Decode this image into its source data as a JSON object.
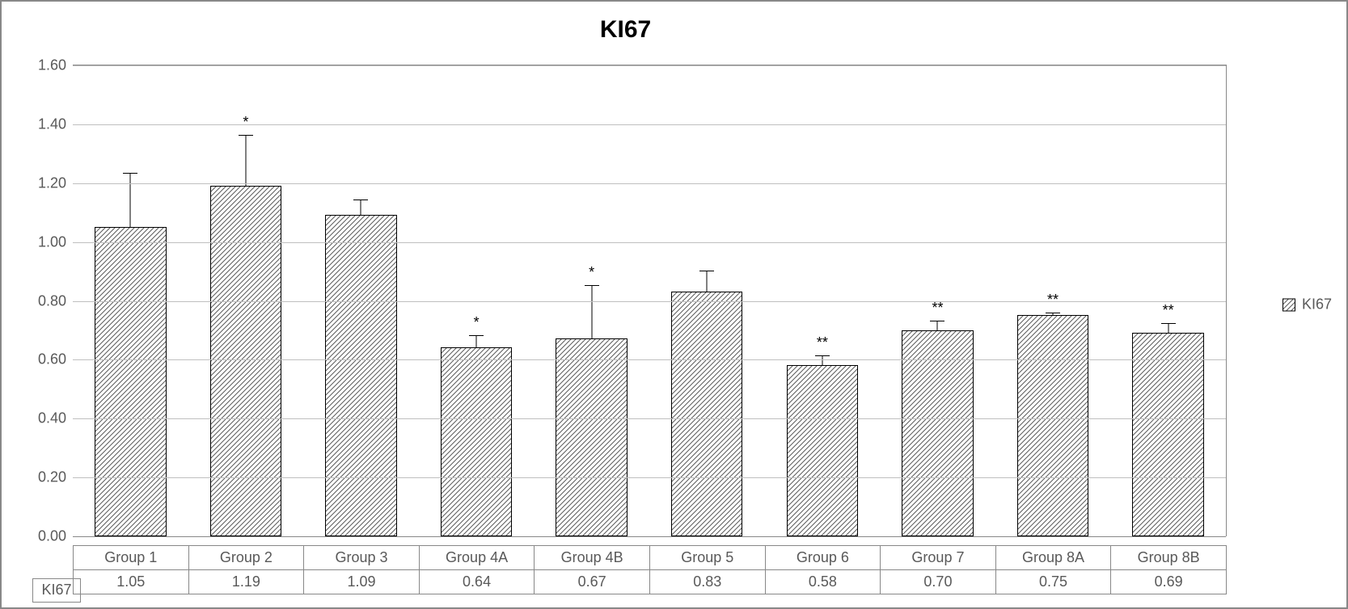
{
  "chart": {
    "type": "bar",
    "title": "KI67",
    "title_fontsize": 30,
    "title_fontweight": "bold",
    "background_color": "#ffffff",
    "border_color": "#888888",
    "grid_color": "#bfbfbf",
    "text_color": "#595959",
    "axis_fontsize": 18,
    "ylim": [
      0.0,
      1.6
    ],
    "ytick_step": 0.2,
    "yticks": [
      "0.00",
      "0.20",
      "0.40",
      "0.60",
      "0.80",
      "1.00",
      "1.20",
      "1.40",
      "1.60"
    ],
    "categories": [
      "Group 1",
      "Group 2",
      "Group 3",
      "Group 4A",
      "Group 4B",
      "Group 5",
      "Group 6",
      "Group 7",
      "Group 8A",
      "Group 8B"
    ],
    "series_label": "KI67",
    "row_header": "KI67",
    "values": [
      1.05,
      1.19,
      1.09,
      0.64,
      0.67,
      0.83,
      0.58,
      0.7,
      0.75,
      0.69
    ],
    "value_labels": [
      "1.05",
      "1.19",
      "1.09",
      "0.64",
      "0.67",
      "0.83",
      "0.58",
      "0.70",
      "0.75",
      "0.69"
    ],
    "errors": [
      0.18,
      0.17,
      0.05,
      0.04,
      0.18,
      0.07,
      0.03,
      0.03,
      0.005,
      0.03
    ],
    "significance": [
      "",
      "*",
      "",
      "*",
      "*",
      "",
      "**",
      "**",
      "**",
      "**"
    ],
    "bar_fill": "diagonal-hatch",
    "bar_border_color": "#000000",
    "bar_width_ratio": 0.62,
    "hatch_stroke": "#5a5a5a",
    "hatch_spacing": 5,
    "legend": {
      "label": "KI67",
      "position": "right"
    }
  }
}
